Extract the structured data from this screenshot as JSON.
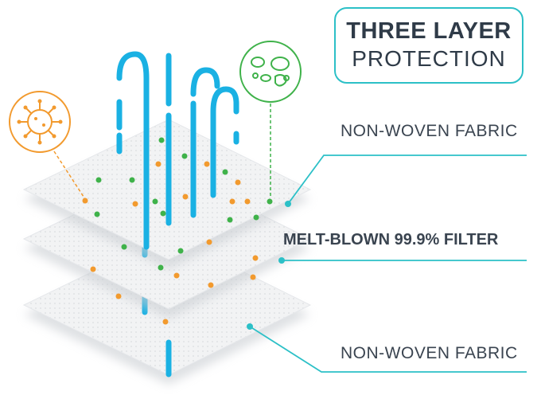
{
  "badge": {
    "line1": "THREE LAYER",
    "line2": "PROTECTION"
  },
  "labels": {
    "top_layer": "NON-WOVEN FABRIC",
    "middle_layer": "MELT-BLOWN 99.9% FILTER",
    "bottom_layer": "NON-WOVEN FABRIC"
  },
  "icons": {
    "pathogen": "virus-icon",
    "particles": "bacteria-icon"
  },
  "colors": {
    "airflow": "#1ab1e3",
    "accent": "#2cc0c7",
    "virus": "#f29a2e",
    "bacteria": "#3fb24a",
    "text": "#3a4450"
  }
}
